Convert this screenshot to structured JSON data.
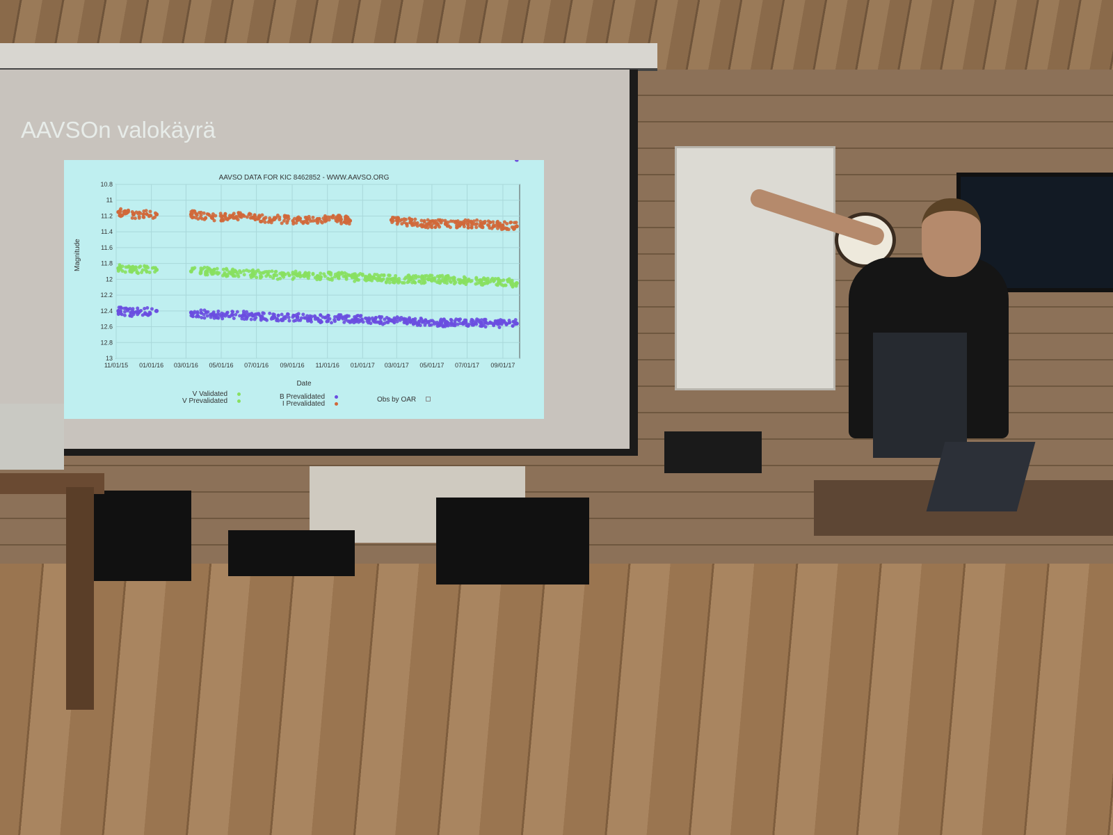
{
  "slide": {
    "title": "AAVSOn valokäyrä"
  },
  "chart_data": {
    "type": "scatter",
    "title": "AAVSO DATA FOR KIC 8462852 - WWW.AAVSO.ORG",
    "xlabel": "Date",
    "ylabel": "Magnitude",
    "x_ticks": [
      "11/01/15",
      "01/01/16",
      "03/01/16",
      "05/01/16",
      "07/01/16",
      "09/01/16",
      "11/01/16",
      "01/01/17",
      "03/01/17",
      "05/01/17",
      "07/01/17",
      "09/01/17"
    ],
    "y_ticks": [
      "10.8",
      "11",
      "11.2",
      "11.4",
      "11.6",
      "11.8",
      "12",
      "12.2",
      "12.4",
      "12.6",
      "12.8",
      "13"
    ],
    "ylim": [
      13,
      10.8
    ],
    "y_inverted": true,
    "xlim": [
      "2015-11-01",
      "2017-09-30"
    ],
    "grid": true,
    "legend_placement": "bottom",
    "legend": [
      {
        "name": "V Validated",
        "color": "#88e060"
      },
      {
        "name": "V Prevalidated",
        "color": "#88e060"
      },
      {
        "name": "B Prevalidated",
        "color": "#6a4ee0"
      },
      {
        "name": "I Prevalidated",
        "color": "#d0683a"
      },
      {
        "name": "Obs by OAR",
        "color": "#aaaaaa"
      }
    ],
    "series": [
      {
        "name": "I Prevalidated",
        "color": "#d0683a",
        "x": [
          "2015-11-05",
          "2015-12-01",
          "2016-01-10",
          "2016-03-10",
          "2016-04-15",
          "2016-05-20",
          "2016-06-25",
          "2016-08-01",
          "2016-09-10",
          "2016-10-15",
          "2016-11-20",
          "2016-12-10",
          "2017-02-20",
          "2017-03-25",
          "2017-04-25",
          "2017-05-25",
          "2017-06-25",
          "2017-07-25",
          "2017-08-25",
          "2017-09-25"
        ],
        "y": [
          11.15,
          11.18,
          11.18,
          11.18,
          11.22,
          11.2,
          11.22,
          11.24,
          11.25,
          11.24,
          11.24,
          11.26,
          11.25,
          11.28,
          11.3,
          11.3,
          11.3,
          11.3,
          11.32,
          11.33
        ]
      },
      {
        "name": "V Prevalidated",
        "color": "#88e060",
        "x": [
          "2015-11-05",
          "2015-12-01",
          "2016-01-10",
          "2016-03-10",
          "2016-04-15",
          "2016-05-20",
          "2016-06-25",
          "2016-08-01",
          "2016-09-10",
          "2016-10-15",
          "2016-11-20",
          "2016-12-20",
          "2017-01-20",
          "2017-02-20",
          "2017-03-25",
          "2017-04-25",
          "2017-05-25",
          "2017-06-25",
          "2017-07-25",
          "2017-08-25",
          "2017-09-25"
        ],
        "y": [
          11.86,
          11.88,
          11.88,
          11.9,
          11.9,
          11.92,
          11.93,
          11.95,
          11.95,
          11.96,
          11.96,
          11.98,
          11.98,
          12.0,
          12.0,
          12.0,
          12.0,
          12.02,
          12.03,
          12.04,
          12.05
        ]
      },
      {
        "name": "B Prevalidated",
        "color": "#6a4ee0",
        "x": [
          "2015-11-05",
          "2015-12-01",
          "2016-01-10",
          "2016-03-10",
          "2016-04-15",
          "2016-05-20",
          "2016-06-25",
          "2016-08-01",
          "2016-09-10",
          "2016-10-15",
          "2016-11-20",
          "2016-12-20",
          "2017-01-20",
          "2017-02-20",
          "2017-03-25",
          "2017-04-25",
          "2017-05-25",
          "2017-06-25",
          "2017-07-25",
          "2017-08-25",
          "2017-09-25"
        ],
        "y": [
          12.4,
          12.42,
          12.4,
          12.42,
          12.45,
          12.45,
          12.46,
          12.48,
          12.48,
          12.5,
          12.5,
          12.5,
          12.52,
          12.52,
          12.53,
          12.54,
          12.55,
          12.55,
          12.55,
          12.56,
          12.56
        ]
      }
    ]
  }
}
